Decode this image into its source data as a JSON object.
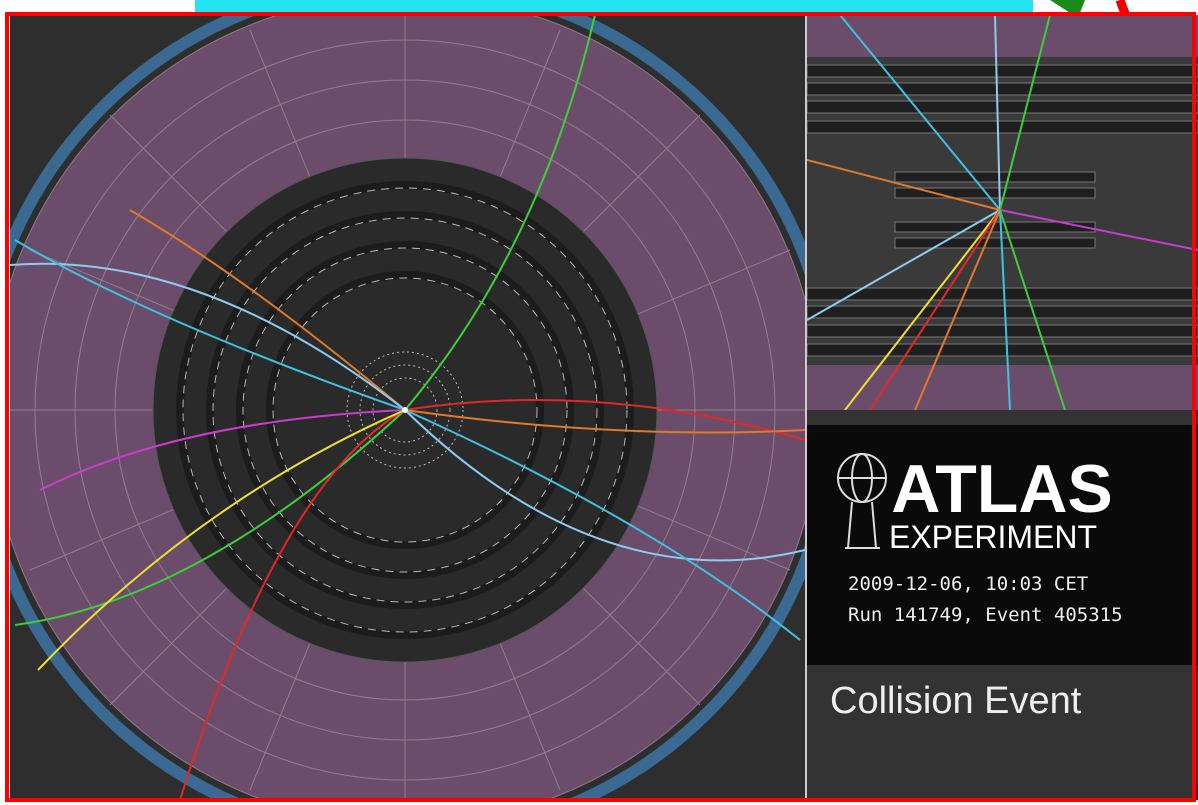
{
  "logo": {
    "title": "ATLAS",
    "subtitle": "EXPERIMENT"
  },
  "event": {
    "timestamp": "2009-12-06, 10:03 CET",
    "run": "Run 141749, Event 405315"
  },
  "caption": "Collision Event"
}
